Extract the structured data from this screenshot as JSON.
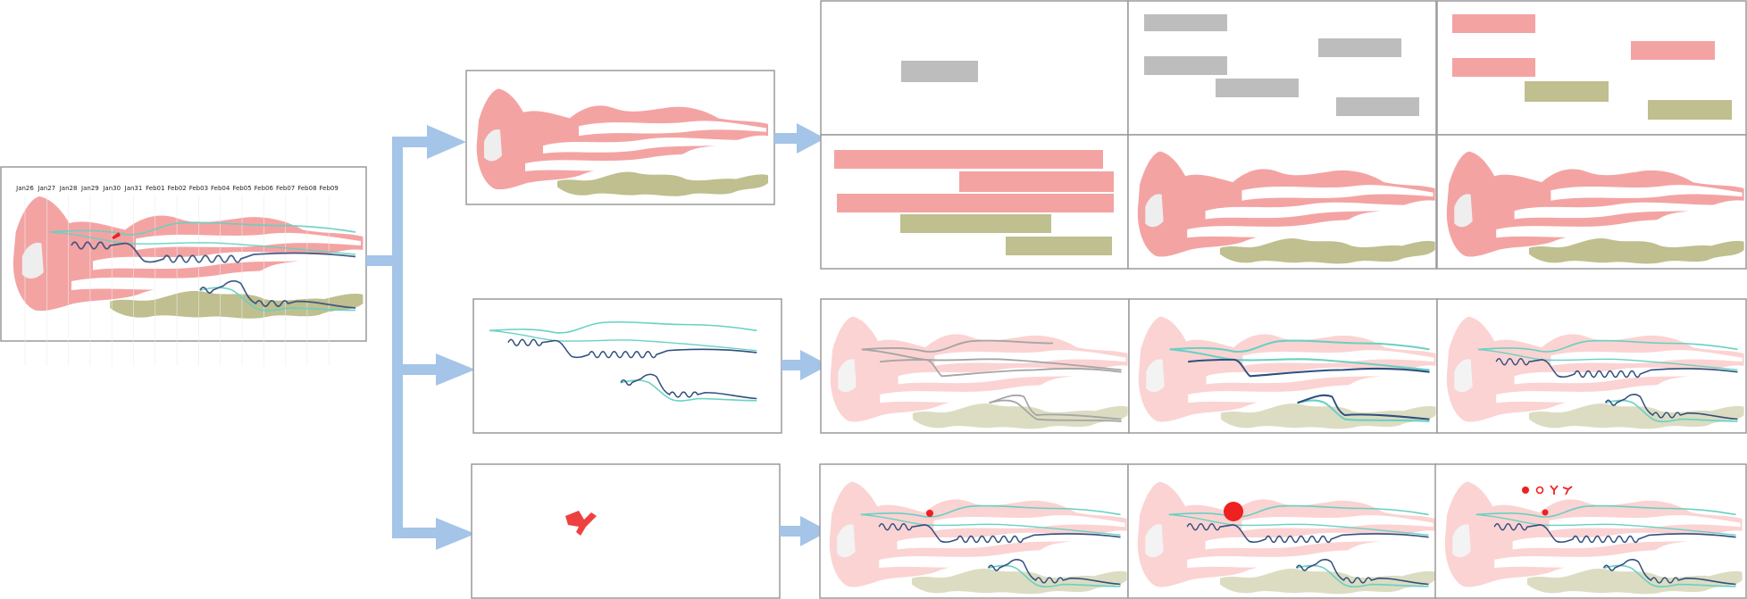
{
  "colors": {
    "flow": "#f4a3a3",
    "flow_faded": "#fbd3d3",
    "olive": "#bfbf8f",
    "olive_faded": "#dcdcc2",
    "hole": "#eeeeee",
    "bar_gray": "#bdbdbd",
    "navy": "#2f4f7f",
    "teal": "#67d1c2",
    "gray_line": "#a5a5a5",
    "arrow": "#a4c4e8",
    "marker": "#ef2020",
    "frame": "#9a9a9a"
  },
  "timeline": {
    "dates": [
      "Jan26",
      "Jan27",
      "Jan28",
      "Jan29",
      "Jan30",
      "Jan31",
      "Feb01",
      "Feb02",
      "Feb03",
      "Feb04",
      "Feb05",
      "Feb06",
      "Feb07",
      "Feb08",
      "Feb09"
    ]
  },
  "icons": {
    "diagram_arrow": "thick-arrow-right",
    "event_marker": "y-shaped-glyph",
    "glyph_set": [
      "filled-dot",
      "ring",
      "y-glyph",
      "y-glyph-alt"
    ]
  }
}
